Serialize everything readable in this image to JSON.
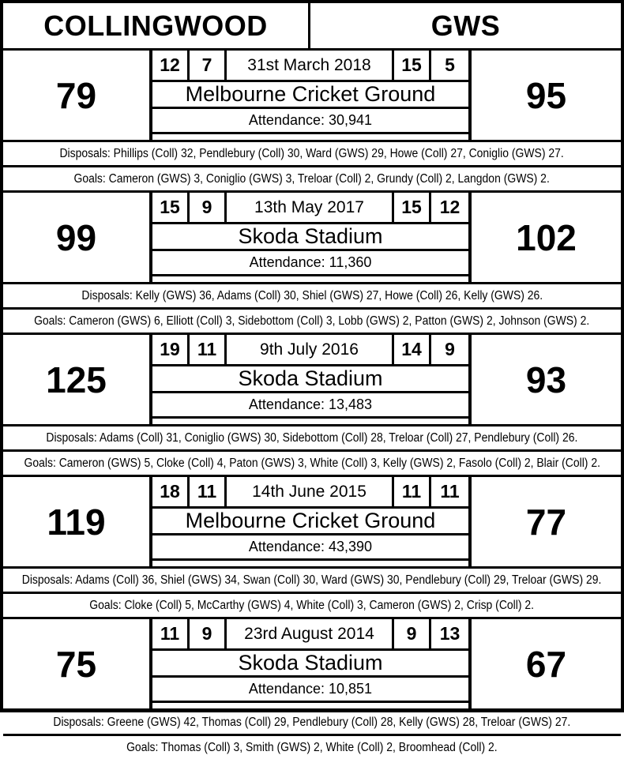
{
  "header": {
    "home_team": "COLLINGWOOD",
    "away_team": "GWS"
  },
  "colors": {
    "border": "#000000",
    "background": "#ffffff",
    "text": "#000000"
  },
  "matches": [
    {
      "home_score": "79",
      "away_score": "95",
      "home_goals": "12",
      "home_behinds": "7",
      "away_goals": "15",
      "away_behinds": "5",
      "date": "31st March 2018",
      "venue": "Melbourne Cricket Ground",
      "attendance": "Attendance: 30,941",
      "disposals": "Disposals: Phillips (Coll) 32, Pendlebury (Coll) 30, Ward (GWS) 29, Howe (Coll) 27, Coniglio (GWS) 27.",
      "goals": "Goals: Cameron (GWS) 3, Coniglio (GWS) 3, Treloar (Coll) 2, Grundy (Coll) 2, Langdon (GWS) 2."
    },
    {
      "home_score": "99",
      "away_score": "102",
      "home_goals": "15",
      "home_behinds": "9",
      "away_goals": "15",
      "away_behinds": "12",
      "date": "13th May 2017",
      "venue": "Skoda Stadium",
      "attendance": "Attendance: 11,360",
      "disposals": "Disposals: Kelly (GWS) 36, Adams (Coll) 30, Shiel (GWS) 27, Howe (Coll) 26, Kelly (GWS) 26.",
      "goals": "Goals: Cameron (GWS) 6, Elliott (Coll) 3, Sidebottom (Coll) 3, Lobb (GWS) 2, Patton (GWS) 2, Johnson (GWS) 2."
    },
    {
      "home_score": "125",
      "away_score": "93",
      "home_goals": "19",
      "home_behinds": "11",
      "away_goals": "14",
      "away_behinds": "9",
      "date": "9th July 2016",
      "venue": "Skoda Stadium",
      "attendance": "Attendance: 13,483",
      "disposals": "Disposals: Adams (Coll) 31, Coniglio (GWS) 30, Sidebottom (Coll) 28, Treloar (Coll) 27, Pendlebury (Coll) 26.",
      "goals": "Goals: Cameron (GWS) 5, Cloke (Coll) 4, Paton (GWS) 3, White (Coll) 3, Kelly (GWS) 2, Fasolo (Coll) 2, Blair (Coll) 2."
    },
    {
      "home_score": "119",
      "away_score": "77",
      "home_goals": "18",
      "home_behinds": "11",
      "away_goals": "11",
      "away_behinds": "11",
      "date": "14th June 2015",
      "venue": "Melbourne Cricket Ground",
      "attendance": "Attendance: 43,390",
      "disposals": "Disposals: Adams (Coll) 36, Shiel (GWS) 34, Swan (Coll) 30, Ward (GWS) 30, Pendlebury (Coll) 29, Treloar (GWS) 29.",
      "goals": "Goals: Cloke (Coll) 5, McCarthy (GWS) 4, White (Coll) 3, Cameron (GWS) 2, Crisp (Coll) 2."
    },
    {
      "home_score": "75",
      "away_score": "67",
      "home_goals": "11",
      "home_behinds": "9",
      "away_goals": "9",
      "away_behinds": "13",
      "date": "23rd August 2014",
      "venue": "Skoda Stadium",
      "attendance": "Attendance: 10,851",
      "disposals": "Disposals: Greene (GWS) 42, Thomas (Coll) 29, Pendlebury (Coll) 28, Kelly (GWS) 28, Treloar (GWS) 27.",
      "goals": "Goals: Thomas (Coll) 3, Smith (GWS) 2, White (Coll) 2, Broomhead (Coll) 2."
    }
  ]
}
